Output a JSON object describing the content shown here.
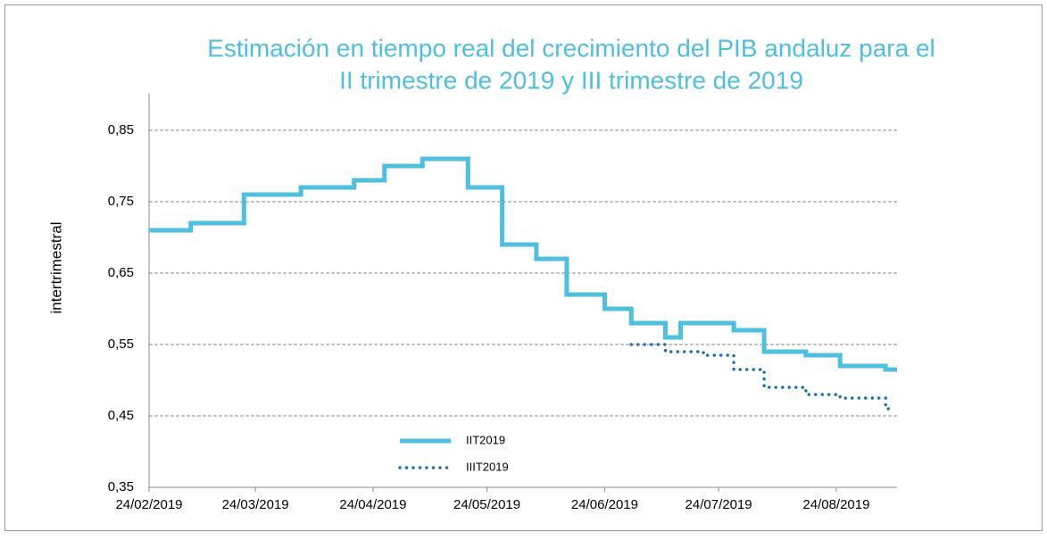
{
  "chart_data": {
    "type": "line",
    "step": "post",
    "title": [
      "Estimación en tiempo real del crecimiento del PIB andaluz para el",
      "II trimestre de 2019 y III trimestre de 2019"
    ],
    "y_label": "intertrimestral",
    "xlim": [
      "24/02/2019",
      "09/09/2019"
    ],
    "xticks": [
      "24/02/2019",
      "24/03/2019",
      "24/04/2019",
      "24/05/2019",
      "24/06/2019",
      "24/07/2019",
      "24/08/2019"
    ],
    "ylim": [
      0.35,
      0.85
    ],
    "yticks": [
      {
        "value": 0.35,
        "label": "0,35"
      },
      {
        "value": 0.45,
        "label": "0,45"
      },
      {
        "value": 0.55,
        "label": "0,55"
      },
      {
        "value": 0.65,
        "label": "0,65"
      },
      {
        "value": 0.75,
        "label": "0,75"
      },
      {
        "value": 0.85,
        "label": "0,85"
      }
    ],
    "grid": true,
    "series": [
      {
        "name": "IIT2019",
        "color": "#4dc0e0",
        "style": "solid",
        "x": [
          "24/02/2019",
          "07/03/2019",
          "21/03/2019",
          "05/04/2019",
          "19/04/2019",
          "27/04/2019",
          "07/05/2019",
          "19/05/2019",
          "28/05/2019",
          "06/06/2019",
          "14/06/2019",
          "24/06/2019",
          "01/07/2019",
          "10/07/2019",
          "14/07/2019",
          "28/07/2019",
          "05/08/2019",
          "16/08/2019",
          "25/08/2019",
          "06/09/2019",
          "09/09/2019"
        ],
        "values": [
          0.71,
          0.72,
          0.76,
          0.77,
          0.78,
          0.8,
          0.81,
          0.77,
          0.69,
          0.67,
          0.62,
          0.6,
          0.58,
          0.56,
          0.58,
          0.57,
          0.54,
          0.535,
          0.52,
          0.515,
          0.515
        ]
      },
      {
        "name": "IIIT2019",
        "color": "#1b6fb3",
        "style": "dotted",
        "x": [
          "01/07/2019",
          "10/07/2019",
          "20/07/2019",
          "28/07/2019",
          "05/08/2019",
          "16/08/2019",
          "25/08/2019",
          "06/09/2019",
          "08/09/2019"
        ],
        "values": [
          0.55,
          0.54,
          0.535,
          0.515,
          0.49,
          0.48,
          0.475,
          0.46,
          0.46
        ]
      }
    ]
  }
}
